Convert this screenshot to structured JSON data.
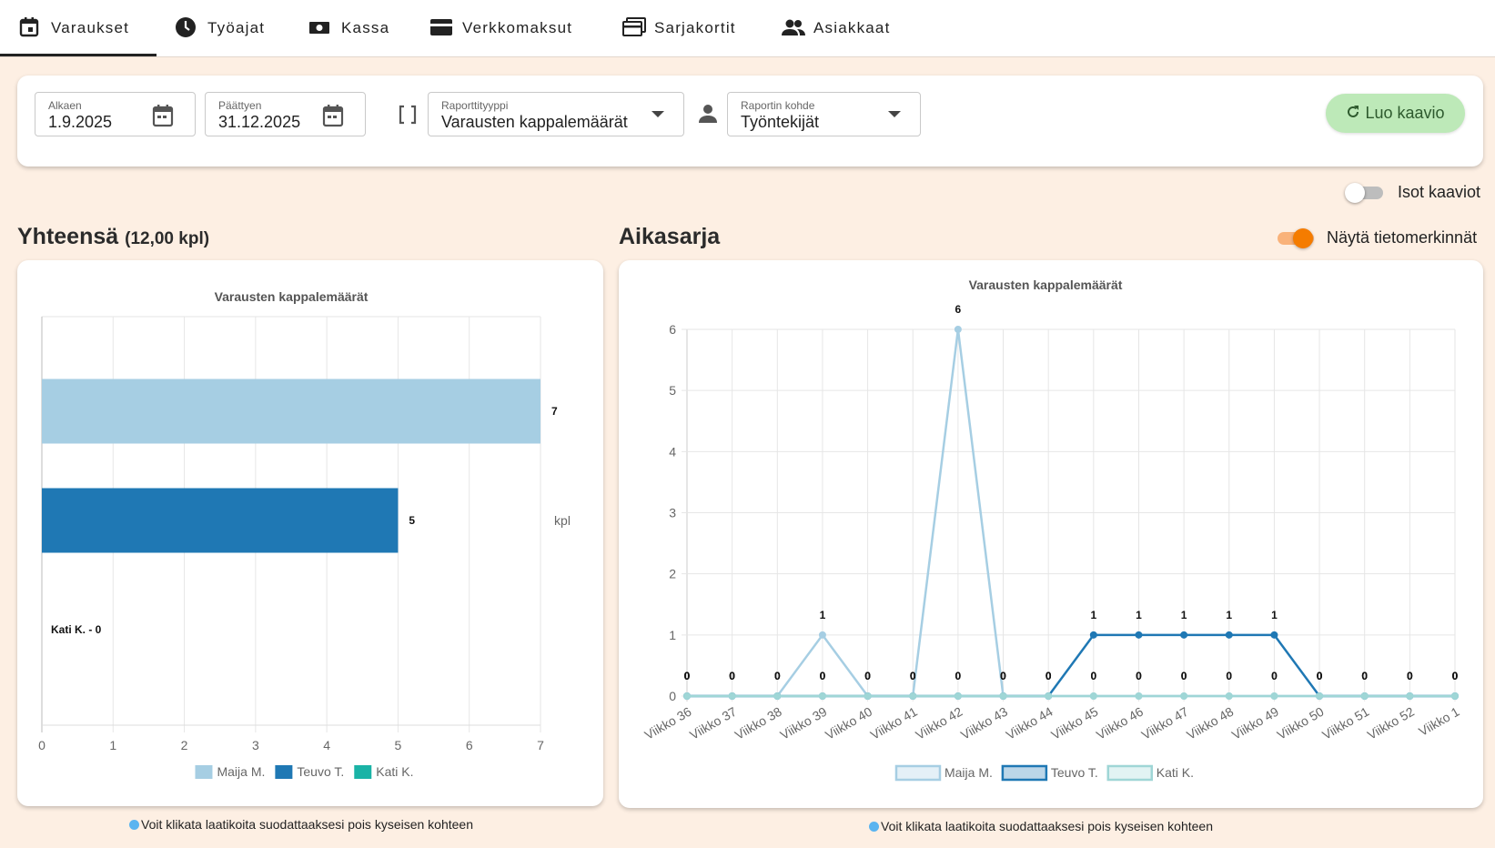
{
  "nav": {
    "tabs": [
      "Varaukset",
      "Työajat",
      "Kassa",
      "Verkkomaksut",
      "Sarjakortit",
      "Asiakkaat"
    ]
  },
  "filters": {
    "start_label": "Alkaen",
    "start": "1.9.2025",
    "end_label": "Päättyen",
    "end": "31.12.2025",
    "report_type_label": "Raporttityyppi",
    "report_type": "Varausten kappalemäärät",
    "target_label": "Raportin kohde",
    "target": "Työntekijät",
    "button": "Luo kaavio"
  },
  "toggles": {
    "big_charts": "Isot kaaviot",
    "show_labels": "Näytä tietomerkinnät"
  },
  "summary": {
    "heading": "Yhteensä",
    "total": "(12,00 kpl)",
    "hint": "Voit klikata laatikoita suodattaaksesi pois kyseisen kohteen"
  },
  "timeseries": {
    "heading": "Aikasarja",
    "hint": "Voit klikata laatikoita suodattaaksesi pois kyseisen kohteen"
  },
  "chart_data": [
    {
      "type": "bar",
      "orientation": "horizontal",
      "title": "Varausten kappalemäärät",
      "categories": [
        "Maija M.",
        "Teuvo T.",
        "Kati K."
      ],
      "values": [
        7,
        5,
        0
      ],
      "value_labels": [
        "7",
        "5",
        "Kati K. - 0"
      ],
      "colors": [
        "#a6cee3",
        "#1f78b4",
        "#1ab3a6"
      ],
      "xlim": [
        0,
        7
      ],
      "xticks": [
        0,
        1,
        2,
        3,
        4,
        5,
        6,
        7
      ],
      "ylabel": "kpl",
      "grid": true,
      "legend": "bottom"
    },
    {
      "type": "line",
      "title": "Varausten kappalemäärät",
      "categories": [
        "Viikko 36",
        "Viikko 37",
        "Viikko 38",
        "Viikko 39",
        "Viikko 40",
        "Viikko 41",
        "Viikko 42",
        "Viikko 43",
        "Viikko 44",
        "Viikko 45",
        "Viikko 46",
        "Viikko 47",
        "Viikko 48",
        "Viikko 49",
        "Viikko 50",
        "Viikko 51",
        "Viikko 52",
        "Viikko 1"
      ],
      "series": [
        {
          "name": "Maija M.",
          "color": "#a6cee3",
          "values": [
            0,
            0,
            0,
            1,
            0,
            0,
            6,
            0,
            0,
            0,
            0,
            0,
            0,
            0,
            0,
            0,
            0,
            0
          ]
        },
        {
          "name": "Teuvo T.",
          "color": "#1f78b4",
          "values": [
            0,
            0,
            0,
            0,
            0,
            0,
            0,
            0,
            0,
            1,
            1,
            1,
            1,
            1,
            0,
            0,
            0,
            0
          ]
        },
        {
          "name": "Kati K.",
          "color": "#9fd6d6",
          "values": [
            0,
            0,
            0,
            0,
            0,
            0,
            0,
            0,
            0,
            0,
            0,
            0,
            0,
            0,
            0,
            0,
            0,
            0
          ]
        }
      ],
      "ylim": [
        0,
        6
      ],
      "yticks": [
        0,
        1,
        2,
        3,
        4,
        5,
        6
      ],
      "grid": true,
      "legend": "bottom",
      "data_labels": true
    }
  ]
}
